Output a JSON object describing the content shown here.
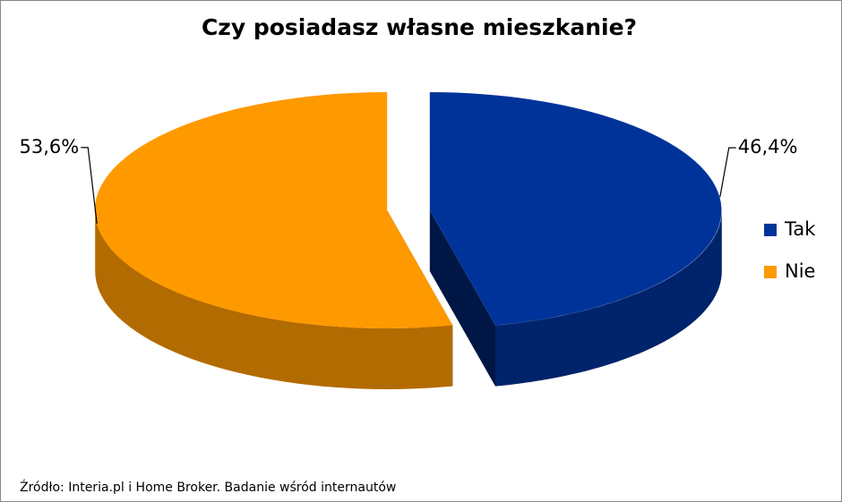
{
  "chart_data": {
    "type": "pie",
    "title": "Czy posiadasz własne mieszkanie?",
    "categories": [
      "Tak",
      "Nie"
    ],
    "values": [
      46.4,
      53.6
    ],
    "value_labels": [
      "46,4%",
      "53,6%"
    ],
    "colors": [
      "#003399",
      "#ff9900"
    ],
    "legend": "right",
    "source": "Źródło: Interia.pl i Home Broker. Badanie wśród internautów"
  }
}
